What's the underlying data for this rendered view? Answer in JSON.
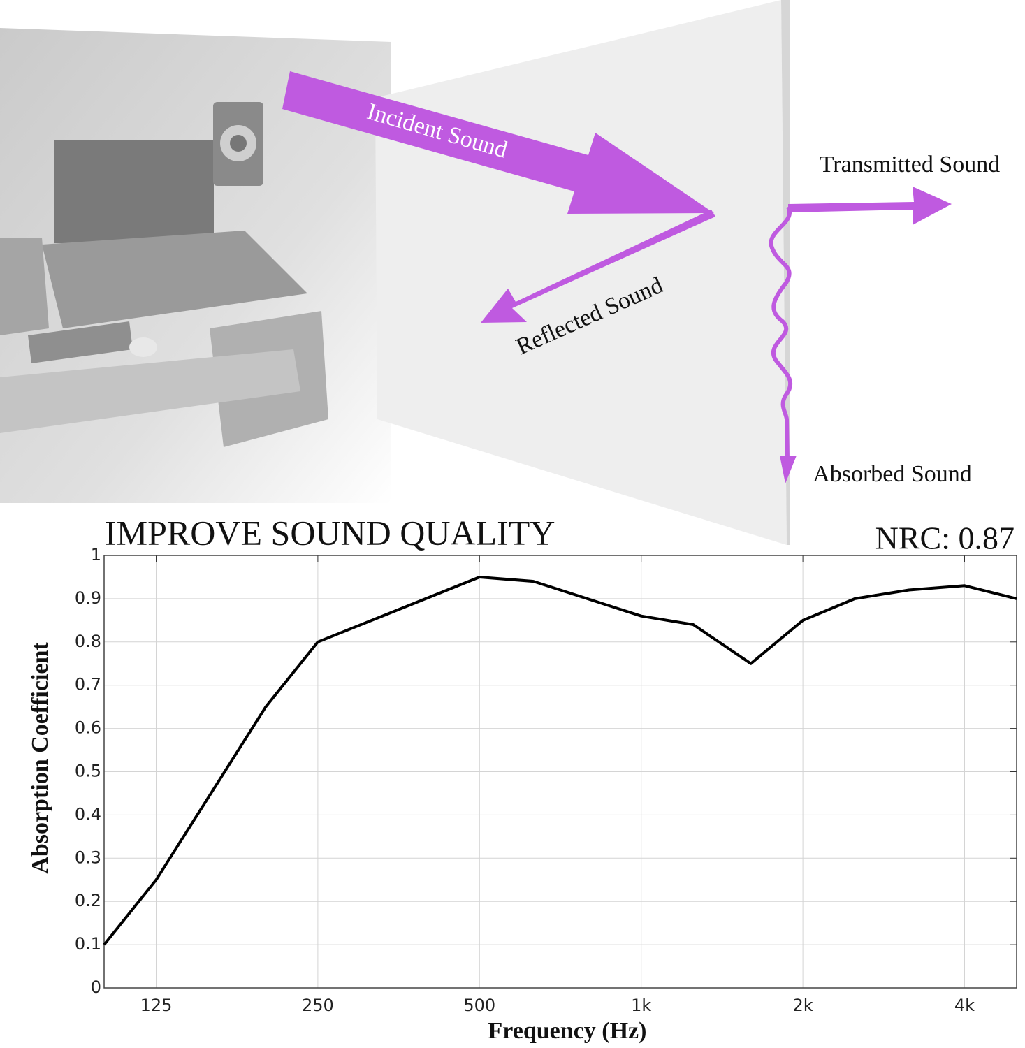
{
  "diagram": {
    "labels": [
      "Incident Sound",
      "Transmitted Sound",
      "Reflected Sound",
      "Absorbed Sound"
    ]
  },
  "chart_data": {
    "type": "line",
    "title": "IMPROVE SOUND QUALITY",
    "annotation": "NRC: 0.87",
    "x_label": "Frequency (Hz)",
    "y_label": "Absorption Coefficient",
    "x": [
      100,
      125,
      200,
      250,
      500,
      630,
      1000,
      1250,
      1600,
      2000,
      2500,
      3150,
      4000,
      5000
    ],
    "values": [
      0.1,
      0.25,
      0.65,
      0.8,
      0.95,
      0.94,
      0.86,
      0.84,
      0.75,
      0.85,
      0.9,
      0.92,
      0.93,
      0.9
    ],
    "color": "#000000",
    "xscale": "log",
    "xlim": [
      100,
      5000
    ],
    "ylim": [
      0,
      1
    ],
    "xticks": [
      125,
      250,
      500,
      {
        "value": 1000,
        "label": "1k"
      },
      {
        "value": 2000,
        "label": "2k"
      },
      {
        "value": 4000,
        "label": "4k"
      }
    ],
    "yticks": [
      0,
      0.1,
      0.2,
      0.3,
      0.4,
      0.5,
      0.6,
      0.7,
      0.8,
      0.9,
      1
    ],
    "grid": true
  }
}
